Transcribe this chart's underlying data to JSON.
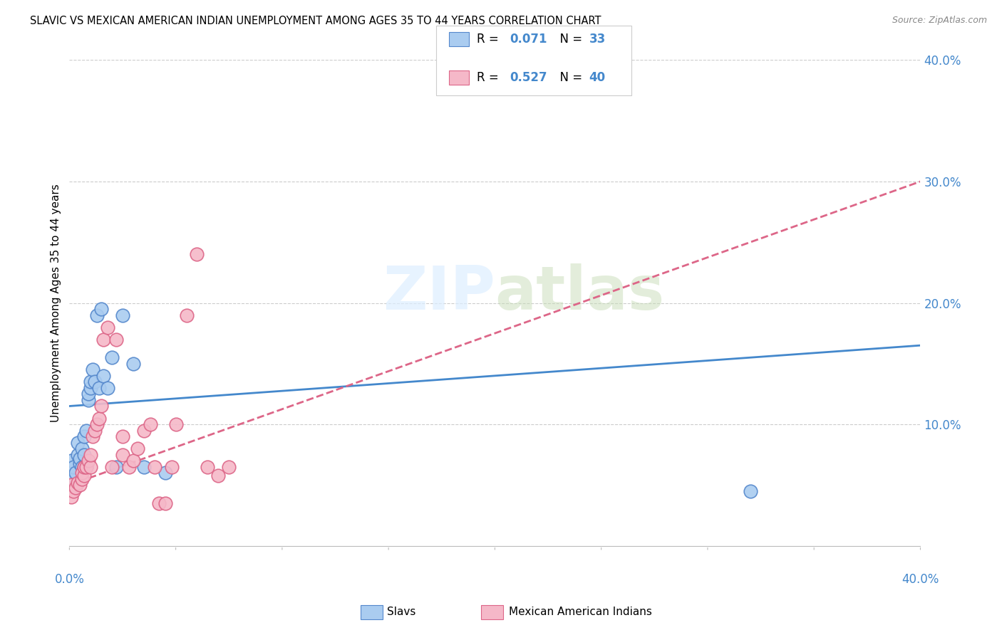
{
  "title": "SLAVIC VS MEXICAN AMERICAN INDIAN UNEMPLOYMENT AMONG AGES 35 TO 44 YEARS CORRELATION CHART",
  "source": "Source: ZipAtlas.com",
  "ylabel": "Unemployment Among Ages 35 to 44 years",
  "xlim": [
    0.0,
    0.4
  ],
  "ylim": [
    0.0,
    0.4
  ],
  "yticks": [
    0.1,
    0.2,
    0.3,
    0.4
  ],
  "ytick_labels": [
    "10.0%",
    "20.0%",
    "30.0%",
    "40.0%"
  ],
  "slavs_color": "#aaccf0",
  "slavs_edge_color": "#5588cc",
  "mexican_color": "#f5b8c8",
  "mexican_edge_color": "#dd6688",
  "trend_slavs_color": "#4488cc",
  "trend_mexican_color": "#dd6688",
  "watermark_color": "#ddeeff",
  "slavs_x": [
    0.001,
    0.001,
    0.002,
    0.003,
    0.004,
    0.004,
    0.005,
    0.005,
    0.006,
    0.006,
    0.007,
    0.007,
    0.007,
    0.008,
    0.008,
    0.009,
    0.009,
    0.01,
    0.01,
    0.011,
    0.012,
    0.013,
    0.014,
    0.015,
    0.016,
    0.018,
    0.02,
    0.022,
    0.025,
    0.03,
    0.035,
    0.32,
    0.045
  ],
  "slavs_y": [
    0.055,
    0.07,
    0.065,
    0.06,
    0.075,
    0.085,
    0.068,
    0.072,
    0.065,
    0.08,
    0.065,
    0.075,
    0.09,
    0.095,
    0.065,
    0.12,
    0.125,
    0.13,
    0.135,
    0.145,
    0.135,
    0.19,
    0.13,
    0.195,
    0.14,
    0.13,
    0.155,
    0.065,
    0.19,
    0.15,
    0.065,
    0.045,
    0.06
  ],
  "mexican_x": [
    0.001,
    0.001,
    0.002,
    0.003,
    0.004,
    0.005,
    0.006,
    0.006,
    0.007,
    0.007,
    0.008,
    0.009,
    0.01,
    0.01,
    0.011,
    0.012,
    0.013,
    0.014,
    0.015,
    0.016,
    0.018,
    0.02,
    0.022,
    0.025,
    0.025,
    0.028,
    0.03,
    0.032,
    0.035,
    0.038,
    0.04,
    0.042,
    0.045,
    0.048,
    0.05,
    0.055,
    0.06,
    0.065,
    0.07,
    0.075
  ],
  "mexican_y": [
    0.04,
    0.05,
    0.045,
    0.048,
    0.052,
    0.05,
    0.055,
    0.06,
    0.058,
    0.065,
    0.065,
    0.07,
    0.065,
    0.075,
    0.09,
    0.095,
    0.1,
    0.105,
    0.115,
    0.17,
    0.18,
    0.065,
    0.17,
    0.075,
    0.09,
    0.065,
    0.07,
    0.08,
    0.095,
    0.1,
    0.065,
    0.035,
    0.035,
    0.065,
    0.1,
    0.19,
    0.24,
    0.065,
    0.058,
    0.065
  ],
  "slavs_trend_x": [
    0.0,
    0.4
  ],
  "slavs_trend_y_start": 0.115,
  "slavs_trend_y_end": 0.165,
  "mexican_trend_x": [
    0.0,
    0.4
  ],
  "mexican_trend_y_start": 0.05,
  "mexican_trend_y_end": 0.3
}
